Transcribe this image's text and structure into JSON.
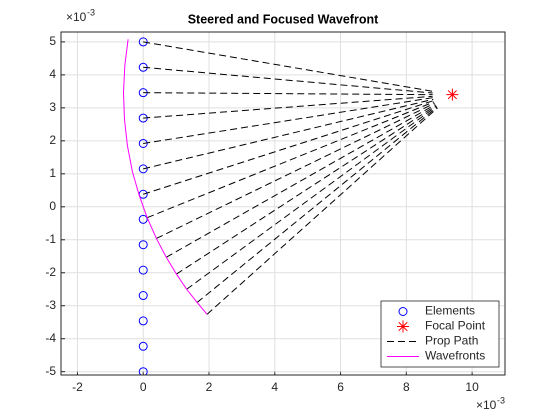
{
  "chart_data": {
    "type": "line",
    "title": "Steered and Focused Wavefront",
    "x_exponent": {
      "base": "×10",
      "power": "-3"
    },
    "y_exponent": {
      "base": "×10",
      "power": "-3"
    },
    "xlim": [
      -2.5,
      11
    ],
    "ylim": [
      -5.1,
      5.3
    ],
    "xticks": [
      -2,
      0,
      2,
      4,
      6,
      8,
      10
    ],
    "yticks": [
      -5,
      -4,
      -3,
      -2,
      -1,
      0,
      1,
      2,
      3,
      4,
      5
    ],
    "grid": true,
    "legend": "southeast",
    "series": [
      {
        "name": "Elements",
        "color": "#0000ff",
        "marker": "o",
        "x": [
          0,
          0,
          0,
          0,
          0,
          0,
          0,
          0,
          0,
          0,
          0,
          0,
          0,
          0
        ],
        "y": [
          5,
          4.23,
          3.46,
          2.69,
          1.92,
          1.15,
          0.38,
          -0.38,
          -1.15,
          -1.92,
          -2.69,
          -3.46,
          -4.23,
          -5
        ]
      },
      {
        "name": "Focal Point",
        "color": "#ff0000",
        "marker": "*",
        "x": [
          9.4
        ],
        "y": [
          3.4
        ]
      },
      {
        "name": "Prop Path",
        "color": "#000000",
        "dash": true,
        "segments": [
          {
            "x": [
              0,
              8.81
            ],
            "y": [
              5,
              3.5
            ]
          },
          {
            "x": [
              0,
              8.8
            ],
            "y": [
              4.23,
              3.45
            ]
          },
          {
            "x": [
              0,
              8.8
            ],
            "y": [
              3.46,
              3.4
            ]
          },
          {
            "x": [
              0,
              8.8
            ],
            "y": [
              2.69,
              3.35
            ]
          },
          {
            "x": [
              0,
              8.81
            ],
            "y": [
              1.92,
              3.31
            ]
          },
          {
            "x": [
              0,
              8.82
            ],
            "y": [
              1.15,
              3.26
            ]
          },
          {
            "x": [
              0,
              8.83
            ],
            "y": [
              0.38,
              3.22
            ]
          },
          {
            "x": [
              0.12,
              8.84
            ],
            "y": [
              -0.33,
              3.18
            ]
          },
          {
            "x": [
              0.4,
              8.86
            ],
            "y": [
              -0.96,
              3.14
            ]
          },
          {
            "x": [
              0.7,
              8.88
            ],
            "y": [
              -1.53,
              3.1
            ]
          },
          {
            "x": [
              1.01,
              8.9
            ],
            "y": [
              -2.04,
              3.07
            ]
          },
          {
            "x": [
              1.32,
              8.92
            ],
            "y": [
              -2.5,
              3.05
            ]
          },
          {
            "x": [
              1.64,
              8.93
            ],
            "y": [
              -2.9,
              3.02
            ]
          },
          {
            "x": [
              1.94,
              8.95
            ],
            "y": [
              -3.26,
              3
            ]
          }
        ]
      },
      {
        "name": "Wavefronts",
        "color": "#ff00ff",
        "x": [
          -0.46,
          -0.56,
          -0.6,
          -0.57,
          -0.48,
          -0.33,
          -0.12,
          0.12,
          0.4,
          0.7,
          1.01,
          1.32,
          1.64,
          1.94
        ],
        "y": [
          5.08,
          4.28,
          3.46,
          2.65,
          1.85,
          1.07,
          0.34,
          -0.33,
          -0.96,
          -1.53,
          -2.04,
          -2.5,
          -2.9,
          -3.26
        ]
      }
    ]
  }
}
